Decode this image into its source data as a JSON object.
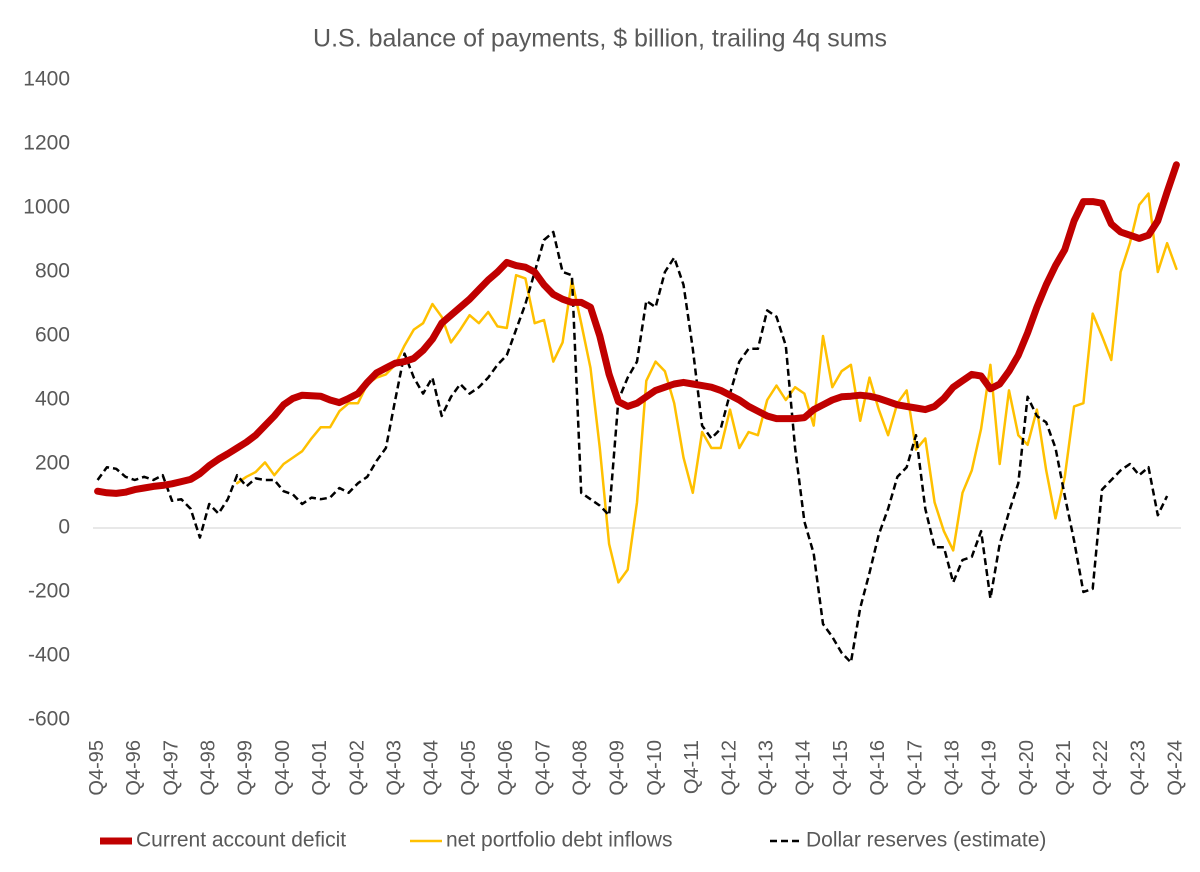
{
  "chart_data": {
    "type": "line",
    "title": "U.S. balance of payments, $ billion, trailing 4q sums",
    "categories": [
      "Q4-95",
      null,
      null,
      null,
      "Q4-96",
      null,
      null,
      null,
      "Q4-97",
      null,
      null,
      null,
      "Q4-98",
      null,
      null,
      null,
      "Q4-99",
      null,
      null,
      null,
      "Q4-00",
      null,
      null,
      null,
      "Q4-01",
      null,
      null,
      null,
      "Q4-02",
      null,
      null,
      null,
      "Q4-03",
      null,
      null,
      null,
      "Q4-04",
      null,
      null,
      null,
      "Q4-05",
      null,
      null,
      null,
      "Q4-06",
      null,
      null,
      null,
      "Q4-07",
      null,
      null,
      null,
      "Q4-08",
      null,
      null,
      null,
      "Q4-09",
      null,
      null,
      null,
      "Q4-10",
      null,
      null,
      null,
      "Q4-11",
      null,
      null,
      null,
      "Q4-12",
      null,
      null,
      null,
      "Q4-13",
      null,
      null,
      null,
      "Q4-14",
      null,
      null,
      null,
      "Q4-15",
      null,
      null,
      null,
      "Q4-16",
      null,
      null,
      null,
      "Q4-17",
      null,
      null,
      null,
      "Q4-18",
      null,
      null,
      null,
      "Q4-19",
      null,
      null,
      null,
      "Q4-20",
      null,
      null,
      null,
      "Q4-21",
      null,
      null,
      null,
      "Q4-22",
      null,
      null,
      null,
      "Q4-23",
      null,
      null,
      null,
      "Q4-24"
    ],
    "series": [
      {
        "name": "Current account deficit",
        "color": "#c00000",
        "width": 7,
        "dashed": false,
        "values": [
          115,
          110,
          108,
          112,
          120,
          125,
          130,
          133,
          138,
          145,
          152,
          170,
          195,
          215,
          232,
          250,
          268,
          290,
          320,
          350,
          385,
          405,
          415,
          413,
          412,
          400,
          392,
          405,
          420,
          455,
          485,
          500,
          515,
          520,
          530,
          555,
          590,
          640,
          665,
          690,
          715,
          745,
          775,
          800,
          830,
          820,
          815,
          800,
          760,
          730,
          715,
          705,
          705,
          690,
          600,
          480,
          395,
          380,
          390,
          410,
          430,
          440,
          450,
          455,
          450,
          445,
          440,
          430,
          415,
          400,
          380,
          365,
          350,
          342,
          342,
          342,
          345,
          370,
          385,
          400,
          410,
          412,
          415,
          412,
          405,
          395,
          385,
          380,
          375,
          370,
          380,
          405,
          440,
          460,
          480,
          475,
          435,
          450,
          490,
          540,
          610,
          690,
          760,
          820,
          870,
          960,
          1020,
          1020,
          1015,
          950,
          925,
          915,
          905,
          915,
          960,
          1050,
          1135
        ]
      },
      {
        "name": "net portfolio debt inflows",
        "color": "#ffc000",
        "width": 2.5,
        "dashed": false,
        "values": [
          null,
          null,
          null,
          null,
          null,
          null,
          null,
          null,
          null,
          null,
          null,
          null,
          null,
          null,
          null,
          140,
          160,
          175,
          205,
          165,
          200,
          220,
          240,
          280,
          315,
          315,
          365,
          390,
          390,
          450,
          470,
          480,
          510,
          570,
          620,
          640,
          700,
          660,
          580,
          620,
          665,
          640,
          675,
          630,
          625,
          790,
          780,
          640,
          650,
          520,
          580,
          775,
          640,
          500,
          250,
          -50,
          -170,
          -130,
          80,
          460,
          520,
          490,
          390,
          220,
          110,
          300,
          250,
          250,
          370,
          250,
          300,
          290,
          400,
          445,
          400,
          440,
          420,
          320,
          600,
          440,
          490,
          510,
          335,
          470,
          370,
          290,
          390,
          430,
          245,
          280,
          80,
          -10,
          -70,
          110,
          180,
          310,
          510,
          200,
          430,
          290,
          260,
          370,
          180,
          30,
          160,
          380,
          390,
          670,
          600,
          525,
          800,
          890,
          1010,
          1045,
          800,
          890,
          810
        ]
      },
      {
        "name": "Dollar reserves (estimate)",
        "color": "#000000",
        "width": 2.5,
        "dashed": true,
        "values": [
          150,
          190,
          185,
          160,
          150,
          160,
          150,
          165,
          85,
          90,
          60,
          -30,
          75,
          45,
          90,
          165,
          130,
          155,
          150,
          150,
          115,
          105,
          75,
          95,
          90,
          95,
          125,
          110,
          140,
          160,
          210,
          250,
          400,
          545,
          470,
          420,
          470,
          350,
          410,
          450,
          420,
          440,
          470,
          510,
          540,
          620,
          700,
          800,
          900,
          925,
          800,
          790,
          110,
          90,
          70,
          40,
          400,
          470,
          520,
          710,
          690,
          800,
          845,
          760,
          560,
          320,
          280,
          310,
          420,
          520,
          560,
          560,
          680,
          660,
          570,
          250,
          20,
          -80,
          -300,
          -340,
          -390,
          -420,
          -250,
          -140,
          -20,
          60,
          160,
          190,
          290,
          60,
          -60,
          -60,
          -170,
          -100,
          -90,
          -10,
          -220,
          -50,
          50,
          140,
          410,
          350,
          330,
          250,
          100,
          -40,
          -200,
          -190,
          120,
          150,
          180,
          200,
          165,
          190,
          40,
          100,
          null
        ]
      }
    ],
    "ylim": [
      -600,
      1400
    ],
    "yticks": [
      -600,
      -400,
      -200,
      0,
      200,
      400,
      600,
      800,
      1000,
      1200,
      1400
    ],
    "grid": false,
    "legend": "bottom"
  }
}
